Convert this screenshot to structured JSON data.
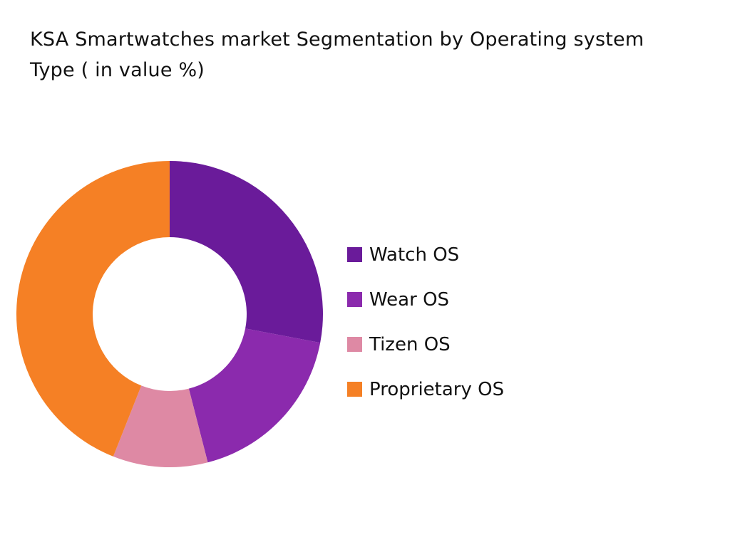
{
  "chart_data": {
    "type": "pie",
    "variant": "donut",
    "title": "KSA Smartwatches market Segmentation by Operating system Type ( in value %)",
    "unit": "%",
    "legend_position": "right",
    "categories": [
      "Watch OS",
      "Wear OS",
      "Tizen OS",
      "Proprietary OS"
    ],
    "values": [
      28,
      18,
      10,
      44
    ],
    "colors": [
      "#6a1b9a",
      "#8b2aad",
      "#de89a4",
      "#f58025"
    ]
  }
}
